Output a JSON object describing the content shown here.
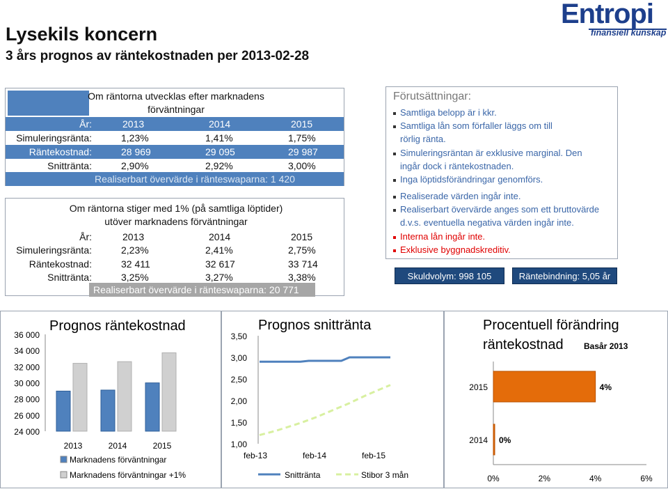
{
  "header": {
    "title": "Lysekils koncern",
    "subtitle": "3 års prognos av räntekostnaden per 2013-02-28",
    "logo_word": "Entropi",
    "logo_tag": "finansiell kunskap"
  },
  "scenario1": {
    "heading_line1": "Om räntorna utvecklas efter marknadens",
    "heading_line2": "förväntningar",
    "rows": [
      {
        "label": "År:",
        "values": [
          "2013",
          "2014",
          "2015"
        ]
      },
      {
        "label": "Simuleringsränta:",
        "values": [
          "1,23%",
          "1,41%",
          "1,75%"
        ]
      },
      {
        "label": "Räntekostnad:",
        "values": [
          "28 969",
          "29 095",
          "29 987"
        ]
      },
      {
        "label": "Snittränta:",
        "values": [
          "2,90%",
          "2,92%",
          "3,00%"
        ]
      }
    ],
    "swap_text": "Realiserbart övervärde i ränteswaparna: 1 420"
  },
  "scenario2": {
    "heading_line1": "Om räntorna stiger med 1% (på samtliga löptider)",
    "heading_line2": "utöver marknadens förväntningar",
    "rows": [
      {
        "label": "År:",
        "values": [
          "2013",
          "2014",
          "2015"
        ]
      },
      {
        "label": "Simuleringsränta:",
        "values": [
          "2,23%",
          "2,41%",
          "2,75%"
        ]
      },
      {
        "label": "Räntekostnad:",
        "values": [
          "32 411",
          "32 617",
          "33 714"
        ]
      },
      {
        "label": "Snittränta:",
        "values": [
          "3,25%",
          "3,27%",
          "3,38%"
        ]
      }
    ],
    "swap_text": "Realiserbart övervärde i ränteswaparna: 20 771"
  },
  "assumptions": {
    "title": "Förutsättningar:",
    "items": [
      "Samtliga belopp är i kkr.",
      "Samtliga lån som förfaller läggs om till",
      "rörlig ränta.",
      "Simuleringsräntan är exklusive marginal. Den",
      "ingår dock i räntekostnaden.",
      "Inga löptidsförändringar genomförs.",
      "Realiserade värden ingår inte.",
      "Realiserbart övervärde anges som ett bruttovärde",
      "d.v.s. eventuella negativa värden ingår inte.",
      "Interna lån ingår inte.",
      "Exklusive byggnadskreditiv."
    ],
    "skuldvolym": "Skuldvolym: 998 105",
    "rantebindning": "Räntebindning: 5,05 år"
  },
  "chart_data": [
    {
      "type": "bar",
      "title": "Prognos räntekostnad",
      "categories": [
        "2013",
        "2014",
        "2015"
      ],
      "series": [
        {
          "name": "Marknadens förväntningar",
          "values": [
            28969,
            29095,
            29987
          ],
          "color": "#4f81bd"
        },
        {
          "name": "Marknadens förväntningar +1%",
          "values": [
            32411,
            32617,
            33714
          ],
          "color": "#d0d0d0"
        }
      ],
      "ylim": [
        24000,
        36000
      ],
      "yticks": [
        "24 000",
        "26 000",
        "28 000",
        "30 000",
        "32 000",
        "34 000",
        "36 000"
      ],
      "grid": false,
      "legend": "bottom"
    },
    {
      "type": "line",
      "title": "Prognos snittränta",
      "x_ticks": [
        "feb-13",
        "feb-14",
        "feb-15"
      ],
      "series": [
        {
          "name": "Snittränta",
          "color": "#4f81bd",
          "values": [
            2.9,
            2.9,
            2.9,
            2.9,
            2.9,
            2.9,
            2.92,
            2.92,
            2.92,
            2.92,
            2.92,
            3.0,
            3.0,
            3.0,
            3.0,
            3.0,
            3.0
          ]
        },
        {
          "name": "Stibor 3 mån",
          "color": "#d8f0a0",
          "dashed": true,
          "values": [
            1.2,
            1.25,
            1.3,
            1.36,
            1.42,
            1.48,
            1.55,
            1.62,
            1.7,
            1.78,
            1.86,
            1.94,
            2.03,
            2.12,
            2.2,
            2.28,
            2.36
          ]
        }
      ],
      "ylim": [
        1.0,
        3.5
      ],
      "yticks": [
        "1,00",
        "1,50",
        "2,00",
        "2,50",
        "3,00",
        "3,50"
      ],
      "grid": false,
      "legend": "bottom"
    },
    {
      "type": "bar",
      "orientation": "horizontal",
      "title_line1": "Procentuell förändring",
      "title_line2": "räntekostnad",
      "subtitle": "Basår 2013",
      "categories": [
        "2015",
        "2014"
      ],
      "values": [
        4,
        0
      ],
      "value_labels": [
        "4%",
        "0%"
      ],
      "color": "#e46c0a",
      "xlim": [
        0,
        6
      ],
      "xticks": [
        "0%",
        "2%",
        "4%",
        "6%"
      ],
      "grid": false
    }
  ]
}
